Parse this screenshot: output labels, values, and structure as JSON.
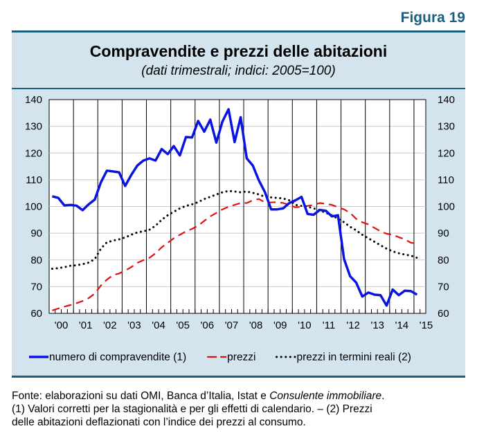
{
  "figure_label": "Figura 19",
  "note": {
    "source_prefix": "Fonte: elaborazioni su dati OMI, Banca d’Italia, Istat e ",
    "source_italic": "Consulente immobiliare",
    "source_suffix": ".",
    "line2": "(1) Valori corretti per la stagionalità e per gli effetti di calendario. – (2) Prezzi",
    "line3": "delle abitazioni deflazionati con l’indice dei prezzi al consumo."
  },
  "chart_data": {
    "type": "line",
    "title": "Compravendite e prezzi delle abitazioni",
    "subtitle": "(dati trimestrali; indici: 2005=100)",
    "x_start": "2000Q1",
    "x_end": "2015Q1",
    "frequency": "quarterly",
    "x_tick_labels": [
      "'00",
      "'01",
      "'02",
      "'03",
      "'04",
      "'05",
      "'06",
      "'07",
      "'08",
      "'09",
      "'10",
      "'11",
      "'12",
      "'13",
      "'14",
      "'15"
    ],
    "ylim": [
      60,
      140
    ],
    "y_ticks": [
      60,
      70,
      80,
      90,
      100,
      110,
      120,
      130,
      140
    ],
    "y_axis_both_sides": true,
    "grid": true,
    "legend_position": "bottom",
    "series": [
      {
        "name": "numero di compravendite (1)",
        "color": "#0a14e0",
        "style": "solid",
        "values": [
          103.8,
          103.2,
          100.4,
          100.6,
          100.3,
          98.6,
          100.8,
          102.6,
          109,
          113.4,
          113.1,
          112.8,
          107.7,
          111.8,
          115.3,
          117.2,
          118,
          117.2,
          121.5,
          119.6,
          122.6,
          119.1,
          126,
          125.8,
          132,
          128,
          132.5,
          123.9,
          131.8,
          136.4,
          124.1,
          133.4,
          118,
          115.3,
          109.7,
          105.3,
          98.9,
          98.9,
          99.3,
          101.3,
          102.3,
          103.6,
          97.2,
          96.9,
          98.7,
          98.4,
          96.3,
          96.7,
          80.3,
          73.9,
          71.5,
          66.3,
          67.8,
          67,
          66.8,
          62.9,
          68.9,
          66.8,
          68.5,
          68.3,
          67
        ]
      },
      {
        "name": "prezzi",
        "color": "#e01010",
        "style": "dashed",
        "values": [
          61.1,
          61.8,
          62.5,
          63.1,
          63.8,
          64.6,
          65.7,
          67.4,
          70.4,
          72.6,
          74.3,
          74.9,
          76,
          77.3,
          78.9,
          79.9,
          80.8,
          82.5,
          84.7,
          86.4,
          88.1,
          89.4,
          90.7,
          91.6,
          92.8,
          94.6,
          96.3,
          97.6,
          98.9,
          99.9,
          100.6,
          101.3,
          101.3,
          102.3,
          102.8,
          101.5,
          101.5,
          101.6,
          101.3,
          100.6,
          99.7,
          99.9,
          100.2,
          100.6,
          101.3,
          101,
          100.6,
          99.7,
          98.9,
          97.6,
          95.4,
          94.1,
          93.3,
          92,
          90.7,
          89.8,
          89.4,
          88.5,
          87.7,
          86.4,
          86.2
        ]
      },
      {
        "name": "prezzi in termini reali (2)",
        "color": "#000000",
        "style": "dotted",
        "values": [
          76.7,
          76.9,
          77.3,
          77.8,
          78,
          78.4,
          79,
          80.3,
          84.2,
          86.6,
          87.2,
          87.7,
          88.4,
          89.4,
          90.3,
          90.7,
          91.3,
          92.8,
          95,
          96.7,
          98,
          99.3,
          100.2,
          100.8,
          101.6,
          102.8,
          103.6,
          104.5,
          105.3,
          105.8,
          105.6,
          105.3,
          105.6,
          105.1,
          104.5,
          103.6,
          103.4,
          103.2,
          103,
          102.3,
          100.6,
          100.2,
          99.9,
          99.3,
          98.6,
          97.6,
          96.7,
          95.4,
          94.1,
          92.4,
          91.1,
          89.4,
          88.1,
          86.8,
          85.5,
          84.2,
          83.2,
          82.5,
          82,
          81.6,
          80.8
        ]
      }
    ]
  }
}
